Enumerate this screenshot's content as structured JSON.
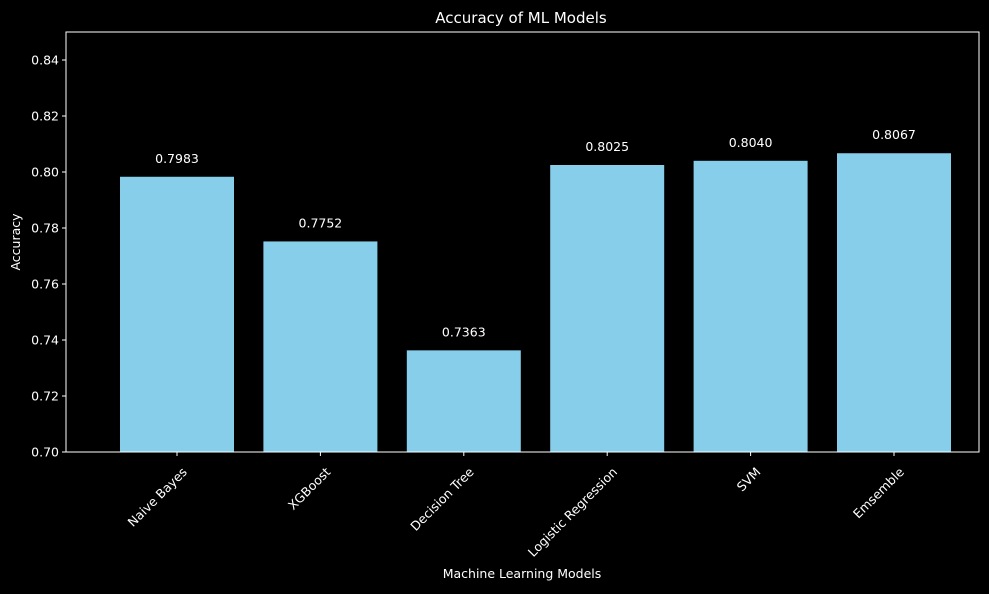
{
  "chart_data": {
    "type": "bar",
    "title": "Accuracy of ML Models",
    "xlabel": "Machine Learning Models",
    "ylabel": "Accuracy",
    "categories": [
      "Naive Bayes",
      "XGBoost",
      "Decision Tree",
      "Logistic Regression",
      "SVM",
      "Emsemble"
    ],
    "values": [
      0.7983,
      0.7752,
      0.7363,
      0.8025,
      0.804,
      0.8067
    ],
    "value_labels": [
      "0.7983",
      "0.7752",
      "0.7363",
      "0.8025",
      "0.8040",
      "0.8067"
    ],
    "ylim": [
      0.7,
      0.85
    ],
    "yticks": [
      0.7,
      0.72,
      0.74,
      0.76,
      0.78,
      0.8,
      0.82,
      0.84
    ],
    "ytick_labels": [
      "0.70",
      "0.72",
      "0.74",
      "0.76",
      "0.78",
      "0.80",
      "0.82",
      "0.84"
    ],
    "grid": false,
    "colors": {
      "background": "#000000",
      "bar": "#87ceeb",
      "text": "#ffffff",
      "axes": "#ffffff"
    }
  }
}
